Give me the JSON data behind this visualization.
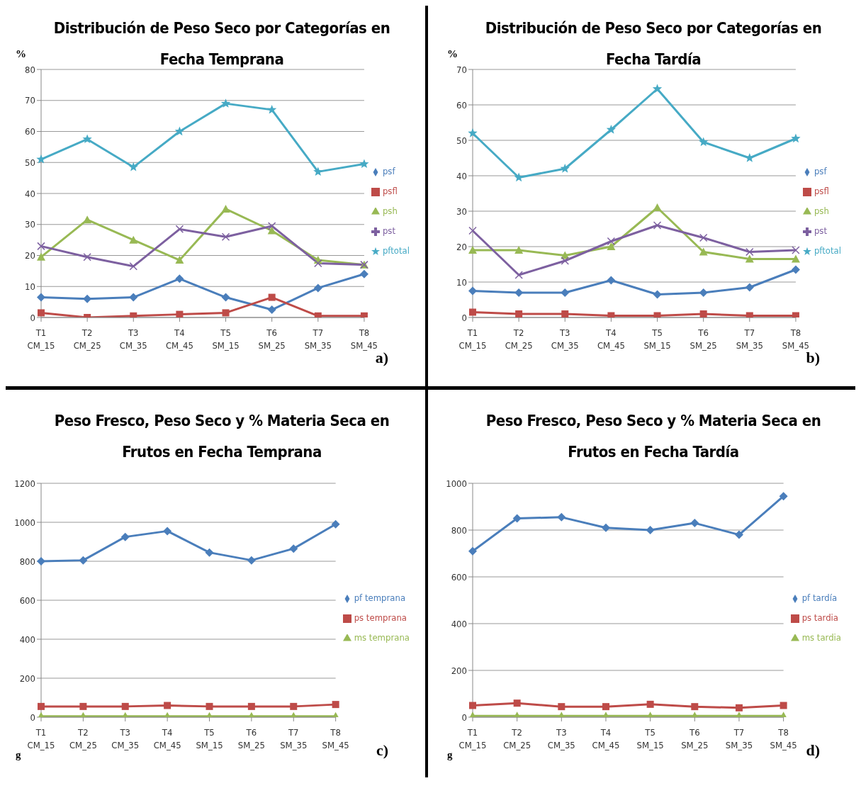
{
  "chart_data": [
    {
      "type": "line",
      "title": "Distribución de Peso Seco por Categorías en Fecha Temprana",
      "ylabel": "%",
      "categories": [
        "T1\nCM_15",
        "T2\nCM_25",
        "T3\nCM_35",
        "T4\nCM_45",
        "T5\nSM_15",
        "T6\nSM_25",
        "T7\nSM_35",
        "T8\nSM_45"
      ],
      "ylim": [
        0,
        80
      ],
      "yticks": [
        0,
        10,
        20,
        30,
        40,
        50,
        60,
        70,
        80
      ],
      "grid": "y",
      "legend": "right",
      "annotations": [
        "a)"
      ],
      "series": [
        {
          "name": "psf",
          "color": "#4a7ebb",
          "marker": "diamond",
          "values": [
            6.5,
            6,
            6.5,
            12.5,
            6.5,
            2.5,
            9.5,
            14
          ]
        },
        {
          "name": "psfl",
          "color": "#be4b48",
          "marker": "square",
          "values": [
            1.5,
            0,
            0.5,
            1,
            1.5,
            6.5,
            0.5,
            0.5
          ]
        },
        {
          "name": "psh",
          "color": "#98b954",
          "marker": "triangle",
          "values": [
            19.5,
            31.5,
            25,
            18.5,
            35,
            28,
            18.5,
            17
          ]
        },
        {
          "name": "pst",
          "color": "#7d60a0",
          "marker": "cross",
          "values": [
            23,
            19.5,
            16.5,
            28.5,
            26,
            29.5,
            17.5,
            17
          ]
        },
        {
          "name": "pftotal",
          "color": "#46aac5",
          "marker": "star",
          "values": [
            51,
            57.5,
            48.5,
            60,
            69,
            67,
            47,
            49.5
          ]
        }
      ]
    },
    {
      "type": "line",
      "title": "Distribución de Peso Seco por Categorías en Fecha Tardía",
      "ylabel": "%",
      "categories": [
        "T1\nCM_15",
        "T2\nCM_25",
        "T3\nCM_35",
        "T4\nCM_45",
        "T5\nSM_15",
        "T6\nSM_25",
        "T7\nSM_35",
        "T8\nSM_45"
      ],
      "ylim": [
        0,
        70
      ],
      "yticks": [
        0,
        10,
        20,
        30,
        40,
        50,
        60,
        70
      ],
      "grid": "y",
      "legend": "right",
      "annotations": [
        "b)"
      ],
      "series": [
        {
          "name": "psf",
          "color": "#4a7ebb",
          "marker": "diamond",
          "values": [
            7.5,
            7,
            7,
            10.5,
            6.5,
            7,
            8.5,
            13.5
          ]
        },
        {
          "name": "psfl",
          "color": "#be4b48",
          "marker": "square",
          "values": [
            1.5,
            1,
            1,
            0.5,
            0.5,
            1,
            0.5,
            0.5
          ]
        },
        {
          "name": "psh",
          "color": "#98b954",
          "marker": "triangle",
          "values": [
            19,
            19,
            17.5,
            20,
            31,
            18.5,
            16.5,
            16.5
          ]
        },
        {
          "name": "pst",
          "color": "#7d60a0",
          "marker": "cross",
          "values": [
            24.5,
            12,
            16,
            21.5,
            26,
            22.5,
            18.5,
            19
          ]
        },
        {
          "name": "pftotal",
          "color": "#46aac5",
          "marker": "star",
          "values": [
            52,
            39.5,
            42,
            53,
            64.5,
            49.5,
            45,
            50.5
          ]
        }
      ]
    },
    {
      "type": "line",
      "title": "Peso Fresco, Peso Seco y % Materia Seca en Frutos en Fecha Temprana",
      "ylabel": "g",
      "categories": [
        "T1\nCM_15",
        "T2\nCM_25",
        "T3\nCM_35",
        "T4\nCM_45",
        "T5\nSM_15",
        "T6\nSM_25",
        "T7\nSM_35",
        "T8\nSM_45"
      ],
      "ylim": [
        0,
        1200
      ],
      "yticks": [
        0,
        200,
        400,
        600,
        800,
        1000,
        1200
      ],
      "grid": "y",
      "legend": "right",
      "annotations": [
        "c)"
      ],
      "series": [
        {
          "name": "pf temprana",
          "color": "#4a7ebb",
          "marker": "diamond",
          "values": [
            800,
            805,
            925,
            955,
            845,
            805,
            865,
            990
          ]
        },
        {
          "name": "ps temprana",
          "color": "#be4b48",
          "marker": "square",
          "values": [
            55,
            55,
            55,
            60,
            55,
            55,
            55,
            65
          ]
        },
        {
          "name": "ms temprana",
          "color": "#98b954",
          "marker": "triangle",
          "values": [
            5,
            5,
            5,
            5,
            5,
            5,
            5,
            5
          ]
        }
      ]
    },
    {
      "type": "line",
      "title": "Peso Fresco, Peso Seco y % Materia Seca en Frutos en Fecha Tardía",
      "ylabel": "g",
      "categories": [
        "T1\nCM_15",
        "T2\nCM_25",
        "T3\nCM_35",
        "T4\nCM_45",
        "T5\nSM_15",
        "T6\nSM_25",
        "T7\nSM_35",
        "T8\nSM_45"
      ],
      "ylim": [
        0,
        1000
      ],
      "yticks": [
        0,
        200,
        400,
        600,
        800,
        1000
      ],
      "grid": "y",
      "legend": "right",
      "annotations": [
        "d)"
      ],
      "series": [
        {
          "name": "pf tardía",
          "color": "#4a7ebb",
          "marker": "diamond",
          "values": [
            710,
            850,
            855,
            810,
            800,
            830,
            780,
            945
          ]
        },
        {
          "name": "ps tardia",
          "color": "#be4b48",
          "marker": "square",
          "values": [
            50,
            60,
            45,
            45,
            55,
            45,
            40,
            50
          ]
        },
        {
          "name": "ms tardia",
          "color": "#98b954",
          "marker": "triangle",
          "values": [
            5,
            5,
            5,
            5,
            5,
            5,
            5,
            5
          ]
        }
      ]
    }
  ]
}
